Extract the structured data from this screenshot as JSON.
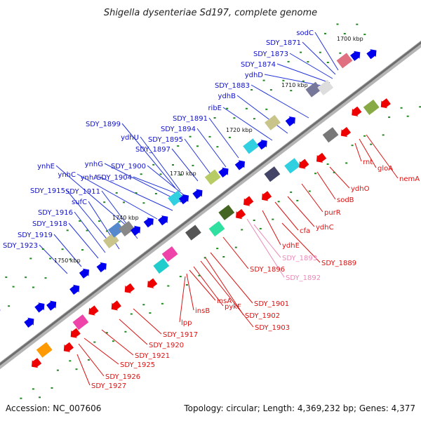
{
  "title": "Shigella dysenteriae Sd197, complete genome",
  "footer": {
    "accession": "Accession: NC_007606",
    "topology": "Topology: circular; Length: 4,369,232 bp; Genes: 4,377"
  },
  "colors": {
    "plus_label": "#1111cc",
    "minus_label": "#dd1111",
    "rna_label": "#ee88bb",
    "backbone": "#777777",
    "tick": "#228822"
  },
  "kbp_ticks": [
    "1700 kbp",
    "1710 kbp",
    "1720 kbp",
    "1730 kbp",
    "1740 kbp",
    "1750 kbp"
  ],
  "upper_labels": [
    "sodC",
    "SDY_1871",
    "SDY_1873",
    "SDY_1874",
    "ydhD",
    "SDY_1883",
    "ydhB",
    "ribE",
    "SDY_1891",
    "SDY_1894",
    "SDY_1895",
    "SDY_1897",
    "SDY_1899",
    "ydhU",
    "SDY_1900",
    "SDY_1904",
    "ynhG",
    "ynhA",
    "ynhC",
    "ynhE",
    "SDY_1911",
    "SDY_1915",
    "sufC",
    "SDY_1916",
    "SDY_1918",
    "SDY_1919",
    "SDY_1923"
  ],
  "lower_labels": [
    "nemA",
    "gloA",
    "rnt",
    "ydhO",
    "sodB",
    "purR",
    "ydhC",
    "cfa",
    "ydhE",
    "SDY_1889",
    "SDY_1893",
    "SDY_1892",
    "SDY_1896",
    "SDY_1901",
    "SDY_1902",
    "SDY_1903",
    "pykF",
    "insA",
    "insB",
    "lpp",
    "SDY_1917",
    "SDY_1920",
    "SDY_1921",
    "SDY_1925",
    "SDY_1926",
    "SDY_1927"
  ]
}
